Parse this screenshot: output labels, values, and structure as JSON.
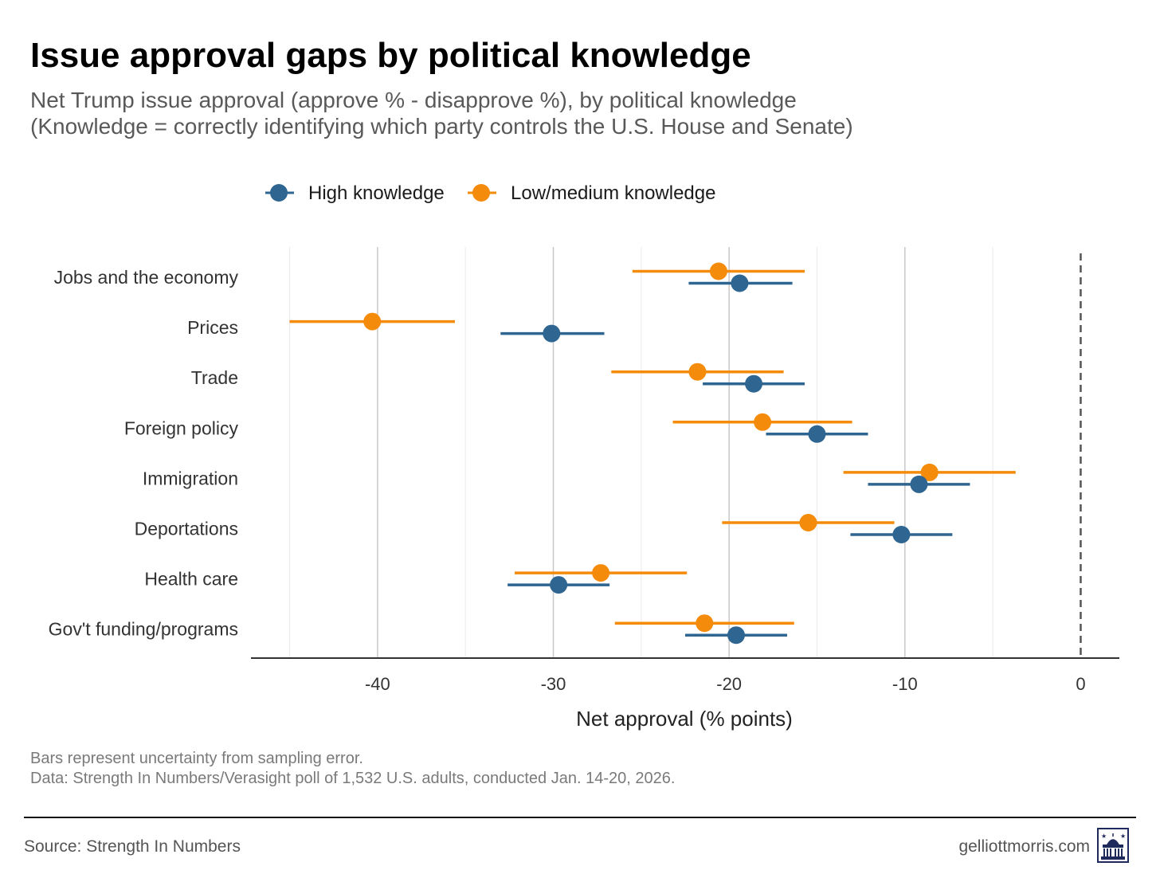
{
  "title": "Issue approval gaps by political knowledge",
  "subtitle_line1": "Net Trump issue approval (approve % - disapprove %), by political knowledge",
  "subtitle_line2": "(Knowledge = correctly identifying which party controls the U.S. House and Senate)",
  "notes": [
    "Bars represent uncertainty from sampling error.",
    "Data: Strength In Numbers/Verasight poll of 1,532 U.S. adults, conducted Jan. 14-20, 2026."
  ],
  "footer": {
    "source": "Source: Strength In Numbers",
    "site": "gelliottmorris.com"
  },
  "colors": {
    "high": "#2e6591",
    "low": "#f58b0a"
  },
  "chart_data": {
    "type": "dot-errorbar",
    "xlabel": "Net approval (% points)",
    "xlim": [
      -47.2,
      2.2
    ],
    "xticks": [
      -40,
      -30,
      -20,
      -10,
      0
    ],
    "xtick_labels": [
      "-40",
      "-30",
      "-20",
      "-10",
      "0"
    ],
    "reference_line": 0,
    "grid": true,
    "legend_position": "top",
    "categories": [
      "Jobs and the economy",
      "Prices",
      "Trade",
      "Foreign policy",
      "Immigration",
      "Deportations",
      "Health care",
      "Gov't funding/programs"
    ],
    "series": [
      {
        "name": "High knowledge",
        "color": "#2e6591",
        "values": [
          -19.4,
          -30.1,
          -18.6,
          -15.0,
          -9.2,
          -10.2,
          -29.7,
          -19.6
        ],
        "lower": [
          -22.3,
          -33.0,
          -21.5,
          -17.9,
          -12.1,
          -13.1,
          -32.6,
          -22.5
        ],
        "upper": [
          -16.4,
          -27.1,
          -15.7,
          -12.1,
          -6.3,
          -7.3,
          -26.8,
          -16.7
        ]
      },
      {
        "name": "Low/medium knowledge",
        "color": "#f58b0a",
        "values": [
          -20.6,
          -40.3,
          -21.8,
          -18.1,
          -8.6,
          -15.5,
          -27.3,
          -21.4
        ],
        "lower": [
          -25.5,
          -45.0,
          -26.7,
          -23.2,
          -13.5,
          -20.4,
          -32.2,
          -26.5
        ],
        "upper": [
          -15.7,
          -35.6,
          -16.9,
          -13.0,
          -3.7,
          -10.6,
          -22.4,
          -16.3
        ]
      }
    ]
  }
}
